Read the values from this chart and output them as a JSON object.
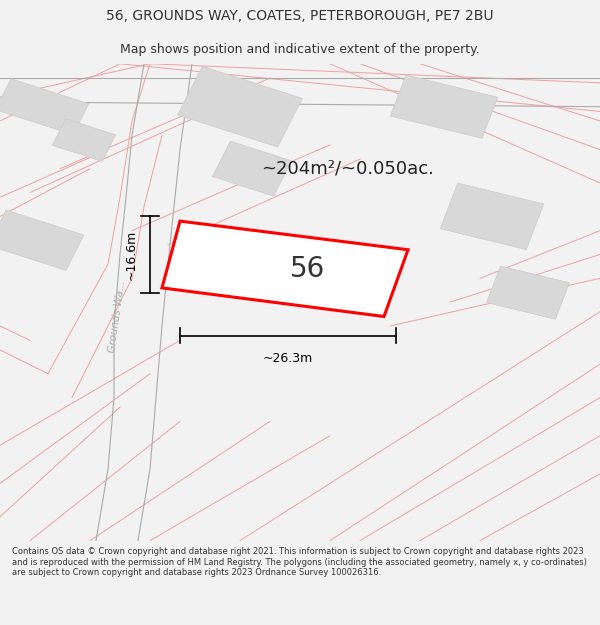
{
  "title_line1": "56, GROUNDS WAY, COATES, PETERBOROUGH, PE7 2BU",
  "title_line2": "Map shows position and indicative extent of the property.",
  "area_text": "~204m²/~0.050ac.",
  "number_label": "56",
  "dim_width": "~26.3m",
  "dim_height": "~16.6m",
  "road_label": "Grounds Wa...",
  "footer_text": "Contains OS data © Crown copyright and database right 2021. This information is subject to Crown copyright and database rights 2023 and is reproduced with the permission of HM Land Registry. The polygons (including the associated geometry, namely x, y co-ordinates) are subject to Crown copyright and database rights 2023 Ordnance Survey 100026316.",
  "bg_color": "#f2f2f2",
  "map_bg": "#ffffff",
  "plot_fill": "#ffffff",
  "plot_edge": "#ff0000",
  "building_fill": "#d8d8d8",
  "building_edge": "#cccccc",
  "street_color": "#f0a0a0",
  "road_color": "#aaaaaa",
  "dim_color": "#000000",
  "title_color": "#333333",
  "footer_color": "#333333",
  "area_text_color": "#222222",
  "number_color": "#333333",
  "road_label_color": "#aaaaaa"
}
